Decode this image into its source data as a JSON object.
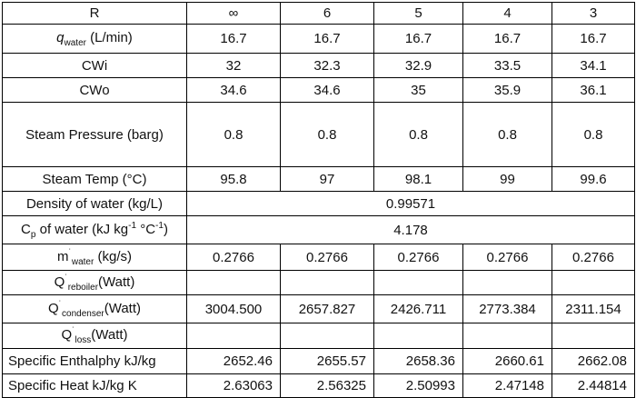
{
  "table": {
    "header": [
      "R",
      "∞",
      "6",
      "5",
      "4",
      "3"
    ],
    "rows": [
      {
        "label_main": "q",
        "label_sub": "water",
        "label_tail": " (L/min)",
        "values": [
          "16.7",
          "16.7",
          "16.7",
          "16.7",
          "16.7"
        ]
      },
      {
        "label": "CWi",
        "values": [
          "32",
          "32.3",
          "32.9",
          "33.5",
          "34.1"
        ]
      },
      {
        "label": "CWo",
        "values": [
          "34.6",
          "34.6",
          "35",
          "35.9",
          "36.1"
        ]
      },
      {
        "label": "Steam Pressure (barg)",
        "values": [
          "0.8",
          "0.8",
          "0.8",
          "0.8",
          "0.8"
        ]
      },
      {
        "label": "Steam Temp (°C)",
        "values": [
          "95.8",
          "97",
          "98.1",
          "99",
          "99.6"
        ]
      },
      {
        "label": "Density of water (kg/L)",
        "merged_value": "0.99571"
      },
      {
        "label_main": "C",
        "label_sub": "p",
        "label_mid": " of water (kJ kg",
        "label_sup1": "-1",
        "label_mid2": " °C",
        "label_sup2": "-1",
        "label_tail": ")",
        "merged_value": "4.178"
      },
      {
        "label_main": "m",
        "label_dot": "˙",
        "label_sub": "water",
        "label_tail": " (kg/s)",
        "values": [
          "0.2766",
          "0.2766",
          "0.2766",
          "0.2766",
          "0.2766"
        ]
      },
      {
        "label_main": "Q",
        "label_dot": "˙",
        "label_sub": "reboiler",
        "label_tail": "(Watt)",
        "values": [
          "",
          "",
          "",
          "",
          ""
        ]
      },
      {
        "label_main": "Q",
        "label_dot": "˙",
        "label_sub": "condenser",
        "label_tail": "(Watt)",
        "values": [
          "3004.500",
          "2657.827",
          "2426.711",
          "2773.384",
          "2311.154"
        ]
      },
      {
        "label_main": "Q",
        "label_dot": "˙",
        "label_sub": "loss",
        "label_tail": "(Watt)",
        "values": [
          "",
          "",
          "",
          "",
          ""
        ]
      },
      {
        "label": "Specific Enthalphy kJ/kg",
        "values": [
          "2652.46",
          "2655.57",
          "2658.36",
          "2660.61",
          "2662.08"
        ]
      },
      {
        "label": "Specific Heat kJ/kg K",
        "values": [
          "2.63063",
          "2.56325",
          "2.50993",
          "2.47148",
          "2.44814"
        ]
      }
    ]
  }
}
